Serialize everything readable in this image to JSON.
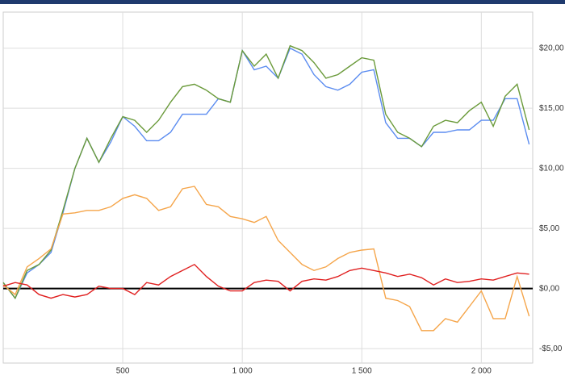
{
  "chart_data": {
    "type": "line",
    "x": [
      0,
      50,
      100,
      150,
      200,
      250,
      300,
      350,
      400,
      450,
      500,
      550,
      600,
      650,
      700,
      750,
      800,
      850,
      900,
      950,
      1000,
      1050,
      1100,
      1150,
      1200,
      1250,
      1300,
      1350,
      1400,
      1450,
      1500,
      1550,
      1600,
      1650,
      1700,
      1750,
      1800,
      1850,
      1900,
      1950,
      2000,
      2050,
      2100,
      2150,
      2200
    ],
    "series": [
      {
        "color": "#5b8cf0",
        "values": [
          0.5,
          -0.8,
          1.3,
          2,
          3,
          6.3,
          10,
          12.5,
          10.5,
          12.2,
          14.3,
          13.5,
          12.3,
          12.3,
          13,
          14.5,
          14.5,
          14.5,
          15.8,
          15.5,
          19.8,
          18.2,
          18.5,
          17.5,
          20,
          19.5,
          17.8,
          16.8,
          16.5,
          17,
          18,
          18.2,
          13.8,
          12.5,
          12.5,
          11.8,
          13,
          13,
          13.2,
          13.2,
          14,
          14,
          15.8,
          15.8,
          12
        ]
      },
      {
        "color": "#6a9a3a",
        "values": [
          0.5,
          -0.8,
          1.5,
          2,
          3.2,
          6.5,
          10,
          12.5,
          10.5,
          12.5,
          14.3,
          14,
          13,
          14,
          15.5,
          16.8,
          17,
          16.5,
          15.8,
          15.5,
          19.8,
          18.5,
          19.5,
          17.5,
          20.2,
          19.8,
          18.8,
          17.5,
          17.8,
          18.5,
          19.2,
          19,
          14.5,
          13,
          12.5,
          11.8,
          13.5,
          14,
          13.8,
          14.8,
          15.5,
          13.5,
          16,
          17,
          13.2
        ]
      },
      {
        "color": "#f5a54a",
        "values": [
          0.3,
          -0.5,
          1.8,
          2.5,
          3.3,
          6.2,
          6.3,
          6.5,
          6.5,
          6.8,
          7.5,
          7.8,
          7.5,
          6.5,
          6.8,
          8.3,
          8.5,
          7,
          6.8,
          6,
          5.8,
          5.5,
          6,
          4,
          3,
          2,
          1.5,
          1.8,
          2.5,
          3,
          3.2,
          3.3,
          -0.8,
          -1,
          -1.5,
          -3.5,
          -3.5,
          -2.5,
          -2.8,
          -1.5,
          -0.2,
          -2.5,
          -2.5,
          1,
          -2.3
        ]
      },
      {
        "color": "#e02020",
        "values": [
          0.2,
          0.5,
          0.3,
          -0.5,
          -0.8,
          -0.5,
          -0.7,
          -0.5,
          0.2,
          0,
          0,
          -0.5,
          0.5,
          0.3,
          1,
          1.5,
          2,
          1,
          0.2,
          -0.2,
          -0.2,
          0.5,
          0.7,
          0.6,
          -0.2,
          0.6,
          0.8,
          0.7,
          1,
          1.5,
          1.7,
          1.5,
          1.3,
          1,
          1.2,
          0.9,
          0.3,
          0.8,
          0.5,
          0.6,
          0.8,
          0.7,
          1,
          1.3,
          1.2
        ]
      }
    ],
    "xlim": [
      0,
      2215
    ],
    "ylim": [
      -6.2,
      23
    ],
    "xticks": [
      500,
      {
        "value": 1000,
        "label": "1 000"
      },
      {
        "value": 1500,
        "label": "1 500"
      },
      {
        "value": 2000,
        "label": "2 000"
      }
    ],
    "yticks": [
      {
        "value": -5,
        "label": "-$5,00"
      },
      {
        "value": 0,
        "label": "$0,00"
      },
      {
        "value": 5,
        "label": "$5,00"
      },
      {
        "value": 10,
        "label": "$10,00"
      },
      {
        "value": 15,
        "label": "$15,00"
      },
      {
        "value": 20,
        "label": "$20,00"
      }
    ],
    "reference_line": 0,
    "grid": true
  }
}
